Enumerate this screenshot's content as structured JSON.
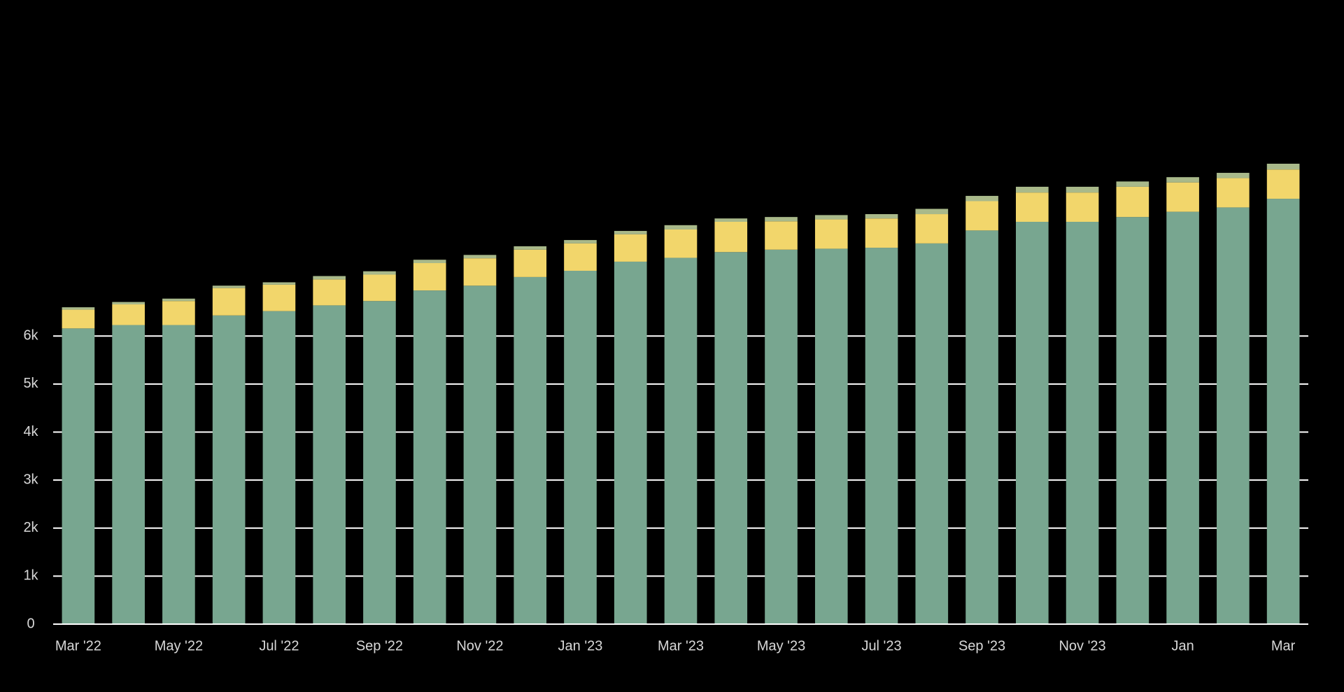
{
  "chart_data": {
    "type": "stacked_bar",
    "categories": [
      "Mar '22",
      null,
      "May '22",
      null,
      "Jul '22",
      null,
      "Sep '22",
      null,
      "Nov '22",
      null,
      "Jan '23",
      null,
      "Mar '23",
      null,
      "May '23",
      null,
      "Jul '23",
      null,
      "Sep '23",
      null,
      "Nov '23",
      null,
      "Jan",
      null,
      "Mar"
    ],
    "series": [
      {
        "color": "#78a690",
        "values": [
          6160,
          6230,
          6230,
          6430,
          6520,
          6640,
          6730,
          6950,
          7050,
          7230,
          7360,
          7550,
          7630,
          7750,
          7800,
          7820,
          7840,
          7930,
          8200,
          8380,
          8380,
          8480,
          8590,
          8680,
          8860
        ]
      },
      {
        "color": "#f2d66b",
        "values": [
          390,
          430,
          500,
          570,
          550,
          540,
          550,
          570,
          570,
          570,
          570,
          570,
          590,
          630,
          590,
          610,
          610,
          610,
          610,
          610,
          610,
          630,
          610,
          610,
          610
        ]
      },
      {
        "color": "#a9b98a",
        "values": [
          50,
          50,
          50,
          50,
          50,
          70,
          70,
          70,
          70,
          70,
          70,
          70,
          90,
          70,
          90,
          90,
          90,
          110,
          110,
          120,
          120,
          110,
          110,
          110,
          120
        ]
      }
    ],
    "ylim": [
      0,
      13000
    ],
    "yticks": [
      {
        "value": 0,
        "label": "0"
      },
      {
        "value": 1000,
        "label": "1k"
      },
      {
        "value": 2000,
        "label": "2k"
      },
      {
        "value": 3000,
        "label": "3k"
      },
      {
        "value": 4000,
        "label": "4k"
      },
      {
        "value": 5000,
        "label": "5k"
      },
      {
        "value": 6000,
        "label": "6k"
      }
    ],
    "grid": true
  }
}
